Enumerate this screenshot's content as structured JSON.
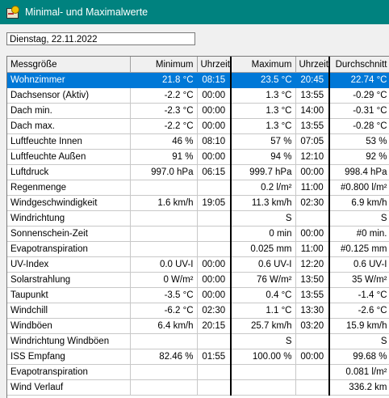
{
  "window": {
    "title": "Minimal- und Maximalwerte"
  },
  "date": "Dienstag, 22.11.2022",
  "colors": {
    "titlebar": "#00827f",
    "selection": "#0078d7"
  },
  "table": {
    "headers": [
      "Messgröße",
      "Minimum",
      "Uhrzeit",
      "Maximum",
      "Uhrzeit",
      "Durchschnitt"
    ],
    "selected_row": 0,
    "rows": [
      [
        "Wohnzimmer",
        "21.8 °C",
        "08:15",
        "23.5 °C",
        "20:45",
        "22.74 °C"
      ],
      [
        "Dachsensor (Aktiv)",
        "-2.2 °C",
        "00:00",
        "1.3 °C",
        "13:55",
        "-0.29 °C"
      ],
      [
        "Dach min.",
        "-2.3 °C",
        "00:00",
        "1.3 °C",
        "14:00",
        "-0.31 °C"
      ],
      [
        "Dach max.",
        "-2.2 °C",
        "00:00",
        "1.3 °C",
        "13:55",
        "-0.28 °C"
      ],
      [
        "Luftfeuchte Innen",
        "46 %",
        "08:10",
        "57 %",
        "07:05",
        "53 %"
      ],
      [
        "Luftfeuchte Außen",
        "91 %",
        "00:00",
        "94 %",
        "12:10",
        "92 %"
      ],
      [
        "Luftdruck",
        "997.0 hPa",
        "06:15",
        "999.7 hPa",
        "00:00",
        "998.4 hPa"
      ],
      [
        "Regenmenge",
        "",
        "",
        "0.2 l/m²",
        "11:00",
        "#0.800 l/m²"
      ],
      [
        "Windgeschwindigkeit",
        "1.6 km/h",
        "19:05",
        "11.3 km/h",
        "02:30",
        "6.9 km/h"
      ],
      [
        "Windrichtung",
        "",
        "",
        "S",
        "",
        "S"
      ],
      [
        "Sonnenschein-Zeit",
        "",
        "",
        "0 min",
        "00:00",
        "#0 min."
      ],
      [
        "Evapotranspiration",
        "",
        "",
        "0.025 mm",
        "11:00",
        "#0.125 mm"
      ],
      [
        "UV-Index",
        "0.0 UV-I",
        "00:00",
        "0.6 UV-I",
        "12:20",
        "0.6 UV-I"
      ],
      [
        "Solarstrahlung",
        "0 W/m²",
        "00:00",
        "76 W/m²",
        "13:50",
        "35 W/m²"
      ],
      [
        "Taupunkt",
        "-3.5 °C",
        "00:00",
        "0.4 °C",
        "13:55",
        "-1.4 °C"
      ],
      [
        "Windchill",
        "-6.2 °C",
        "02:30",
        "1.1 °C",
        "13:30",
        "-2.6 °C"
      ],
      [
        "Windböen",
        "6.4 km/h",
        "20:15",
        "25.7 km/h",
        "03:20",
        "15.9 km/h"
      ],
      [
        "Windrichtung Windböen",
        "",
        "",
        "S",
        "",
        "S"
      ],
      [
        "ISS Empfang",
        "82.46 %",
        "01:55",
        "100.00 %",
        "00:00",
        "99.68 %"
      ],
      [
        "Evapotranspiration",
        "",
        "",
        "",
        "",
        "0.081 l/m²"
      ],
      [
        "Wind Verlauf",
        "",
        "",
        "",
        "",
        "336.2 km"
      ]
    ]
  }
}
